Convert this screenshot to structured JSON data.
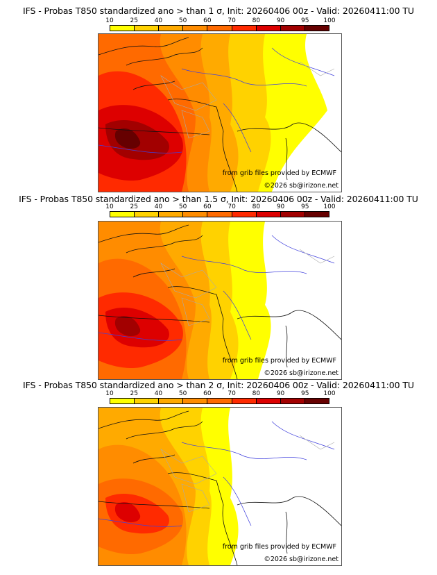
{
  "colorbar": {
    "ticks": [
      "10",
      "25",
      "40",
      "50",
      "60",
      "70",
      "80",
      "90",
      "95",
      "100"
    ],
    "colors": [
      "#ffff00",
      "#ffd200",
      "#ffaa00",
      "#ff8c00",
      "#ff6a00",
      "#ff2a00",
      "#dd0000",
      "#a20000",
      "#660000"
    ]
  },
  "panels": [
    {
      "title": "IFS - Probas T850  standardized ano > than 1 σ, Init: 20260406 00z - Valid: 20260411:00 TU",
      "source_credit": "from grib files provided by ECMWF",
      "copyright": "©2026 sb@irizone.net",
      "intensity": 3
    },
    {
      "title": "IFS - Probas T850  standardized ano > than 1.5 σ, Init: 20260406 00z - Valid: 20260411:00 TU",
      "source_credit": "from grib files provided by ECMWF",
      "copyright": "©2026 sb@irizone.net",
      "intensity": 2
    },
    {
      "title": "IFS - Probas T850  standardized ano > than 2 σ, Init: 20260406 00z - Valid: 20260411:00 TU",
      "source_credit": "from grib files provided by ECMWF",
      "copyright": "©2026 sb@irizone.net",
      "intensity": 1
    }
  ]
}
